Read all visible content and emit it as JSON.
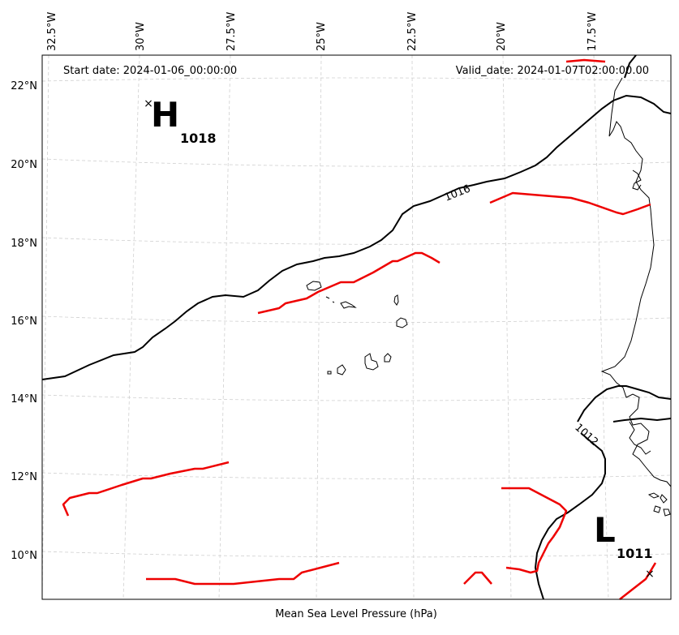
{
  "header": {
    "start_date": "Start date: 2024-01-06_00:00:00",
    "valid_date": "Valid_date: 2024-01-07T02:00:00.00"
  },
  "footer": {
    "label": "Mean Sea Level Pressure (hPa)"
  },
  "axes": {
    "lon_ticks": [
      "32.5°W",
      "30°W",
      "27.5°W",
      "25°W",
      "22.5°W",
      "20°W",
      "17.5°W"
    ],
    "lat_ticks": [
      "22°N",
      "20°N",
      "18°N",
      "16°N",
      "14°N",
      "12°N",
      "10°N"
    ]
  },
  "contours": [
    {
      "label": "1016"
    },
    {
      "label": "1012"
    }
  ],
  "pressure_centers": [
    {
      "type": "H",
      "value": "1018",
      "marker": "×"
    },
    {
      "type": "L",
      "value": "1011",
      "marker": "×"
    }
  ],
  "colors": {
    "contour": "#000000",
    "trough": "#ee0000",
    "grid": "#c8c8c8",
    "coast": "#000000"
  }
}
